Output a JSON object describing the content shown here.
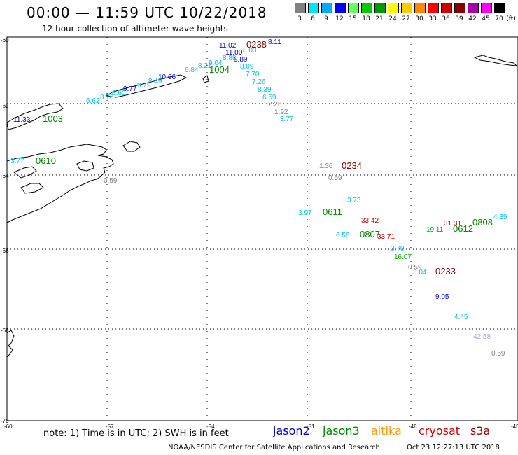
{
  "title": "00:00 — 11:59 UTC 10/22/2018",
  "subtitle": "12 hour collection of altimeter wave heights",
  "legend": {
    "unit_label": "(ft)",
    "bins": [
      {
        "label": "3",
        "color": "#808080"
      },
      {
        "label": "6",
        "color": "#00e5ff"
      },
      {
        "label": "9",
        "color": "#00a8ff"
      },
      {
        "label": "12",
        "color": "#0000ff"
      },
      {
        "label": "15",
        "color": "#66ff66"
      },
      {
        "label": "18",
        "color": "#00cc00"
      },
      {
        "label": "21",
        "color": "#009900"
      },
      {
        "label": "24",
        "color": "#ffff00"
      },
      {
        "label": "27",
        "color": "#ffcc00"
      },
      {
        "label": "30",
        "color": "#ff8800"
      },
      {
        "label": "33",
        "color": "#ff0000"
      },
      {
        "label": "36",
        "color": "#cc0000"
      },
      {
        "label": "39",
        "color": "#880000"
      },
      {
        "label": "42",
        "color": "#aa00aa"
      },
      {
        "label": "45",
        "color": "#ff00ff"
      },
      {
        "label": "70",
        "color": "#000000"
      }
    ]
  },
  "lat_labels": [
    "-60",
    "-62",
    "-64",
    "-66",
    "-68",
    "-70"
  ],
  "lon_labels": [
    "-60",
    "-57",
    "-54",
    "-51",
    "-48",
    "-45"
  ],
  "labels": [
    {
      "text": "11.02",
      "color": "#0000cc"
    },
    {
      "text": "0238",
      "color": "#880000"
    },
    {
      "text": "8.11",
      "color": "#0000cc"
    },
    {
      "text": "11.00",
      "color": "#0000cc"
    },
    {
      "text": "8.03",
      "color": "#00c0e0"
    },
    {
      "text": "8.88",
      "color": "#00c0e0"
    },
    {
      "text": "9.89",
      "color": "#0000cc"
    },
    {
      "text": "9.04",
      "color": "#00c0e0"
    },
    {
      "text": "8.21",
      "color": "#00c0e0"
    },
    {
      "text": "1004",
      "color": "#008800"
    },
    {
      "text": "8.09",
      "color": "#00c0e0"
    },
    {
      "text": "6.84",
      "color": "#00c0e0"
    },
    {
      "text": "7.70",
      "color": "#00c0e0"
    },
    {
      "text": "10.66",
      "color": "#0000cc"
    },
    {
      "text": "7.26",
      "color": "#00c0e0"
    },
    {
      "text": "8.49",
      "color": "#00c0e0"
    },
    {
      "text": "9.79",
      "color": "#00c0e0"
    },
    {
      "text": "9.77",
      "color": "#0000cc"
    },
    {
      "text": "8.39",
      "color": "#00c0e0"
    },
    {
      "text": "8.60",
      "color": "#00c0e0"
    },
    {
      "text": "8.70",
      "color": "#00c0e0"
    },
    {
      "text": "6.59",
      "color": "#00c0e0"
    },
    {
      "text": "6.62",
      "color": "#00c0e0"
    },
    {
      "text": "2.26",
      "color": "#808080"
    },
    {
      "text": "1.92",
      "color": "#808080"
    },
    {
      "text": "3.77",
      "color": "#00c0e0"
    },
    {
      "text": "11.33",
      "color": "#0000cc"
    },
    {
      "text": "1003",
      "color": "#008800"
    },
    {
      "text": "3.77",
      "color": "#00c0e0"
    },
    {
      "text": "0610",
      "color": "#008800"
    },
    {
      "text": "0.59",
      "color": "#808080"
    },
    {
      "text": "1.36",
      "color": "#808080"
    },
    {
      "text": "0234",
      "color": "#880000"
    },
    {
      "text": "0.59",
      "color": "#808080"
    },
    {
      "text": "3.73",
      "color": "#00c0e0"
    },
    {
      "text": "3.97",
      "color": "#00c0e0"
    },
    {
      "text": "0611",
      "color": "#008800"
    },
    {
      "text": "33.42",
      "color": "#cc0000"
    },
    {
      "text": "6.56",
      "color": "#00c0e0"
    },
    {
      "text": "0807",
      "color": "#008800"
    },
    {
      "text": "33.71",
      "color": "#cc0000"
    },
    {
      "text": "31.31",
      "color": "#cc0000"
    },
    {
      "text": "0808",
      "color": "#008800"
    },
    {
      "text": "4.39",
      "color": "#00c0e0"
    },
    {
      "text": "19.11",
      "color": "#00aa00"
    },
    {
      "text": "0612",
      "color": "#008800"
    },
    {
      "text": "3.70",
      "color": "#00c0e0"
    },
    {
      "text": "16.07",
      "color": "#00aa00"
    },
    {
      "text": "0.59",
      "color": "#808080"
    },
    {
      "text": "3.04",
      "color": "#00c0e0"
    },
    {
      "text": "0233",
      "color": "#880000"
    },
    {
      "text": "9.05",
      "color": "#0000cc"
    },
    {
      "text": "4.45",
      "color": "#00c0e0"
    },
    {
      "text": "42.58",
      "color": "#aaaadd"
    },
    {
      "text": "0.59",
      "color": "#808080"
    }
  ],
  "note": "note:  1) Time is in UTC;  2) SWH is in feet",
  "satellites": [
    {
      "name": "jason2",
      "color": "#0000cc"
    },
    {
      "name": "jason3",
      "color": "#008800"
    },
    {
      "name": "altika",
      "color": "#ff9900"
    },
    {
      "name": "cryosat",
      "color": "#cc0000"
    },
    {
      "name": "s3a",
      "color": "#880000"
    }
  ],
  "credit": "NOAA/NESDIS Center for Satellite Applications and Research",
  "timestamp": "Oct 23 12:27:13 UTC 2018"
}
